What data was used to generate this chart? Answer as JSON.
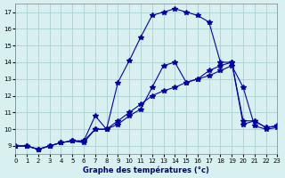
{
  "title": "Graphe des températures (°c)",
  "background_color": "#d8f0f0",
  "grid_color": "#a0c8c8",
  "line_color": "#0000aa",
  "xlim": [
    0,
    23
  ],
  "ylim": [
    8.5,
    17.5
  ],
  "xticks": [
    0,
    1,
    2,
    3,
    4,
    5,
    6,
    7,
    8,
    9,
    10,
    11,
    12,
    13,
    14,
    15,
    16,
    17,
    18,
    19,
    20,
    21,
    22,
    23
  ],
  "yticks": [
    9,
    10,
    11,
    12,
    13,
    14,
    15,
    16,
    17
  ],
  "line1_x": [
    0,
    1,
    2,
    3,
    4,
    5,
    6,
    7,
    8,
    9,
    10,
    11,
    12,
    13,
    14,
    15,
    16,
    17,
    18,
    19,
    20,
    21,
    22,
    23
  ],
  "line1_y": [
    9.0,
    9.0,
    8.8,
    9.0,
    9.2,
    9.3,
    9.2,
    10.0,
    10.0,
    10.5,
    11.0,
    11.5,
    12.0,
    12.3,
    12.5,
    12.8,
    13.0,
    13.2,
    13.5,
    13.8,
    12.5,
    10.2,
    10.0,
    10.1
  ],
  "line2_x": [
    0,
    1,
    2,
    3,
    4,
    5,
    6,
    7,
    8,
    9,
    10,
    11,
    12,
    13,
    14,
    15,
    16,
    17,
    18,
    19,
    20,
    21,
    22,
    23
  ],
  "line2_y": [
    9.0,
    9.0,
    8.8,
    9.0,
    9.2,
    9.3,
    9.3,
    10.0,
    10.0,
    10.3,
    10.8,
    11.2,
    12.5,
    13.8,
    14.0,
    12.8,
    13.0,
    13.5,
    13.8,
    14.0,
    10.3,
    10.5,
    10.1,
    10.2
  ],
  "line3_x": [
    0,
    1,
    2,
    3,
    4,
    5,
    6,
    7,
    8,
    9,
    10,
    11,
    12,
    13,
    14,
    15,
    16,
    17,
    18,
    19,
    20,
    21,
    22,
    23
  ],
  "line3_y": [
    9.0,
    9.0,
    8.8,
    9.0,
    9.2,
    9.3,
    9.3,
    10.8,
    10.0,
    12.8,
    14.1,
    15.5,
    16.8,
    17.0,
    17.2,
    17.0,
    16.8,
    16.4,
    14.0,
    14.0,
    10.5,
    10.5,
    10.1,
    10.2
  ]
}
